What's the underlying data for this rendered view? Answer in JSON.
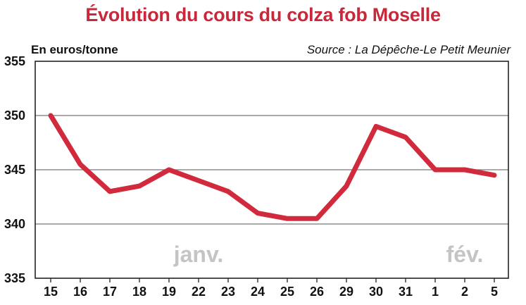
{
  "chart_data": {
    "type": "line",
    "title": "Évolution du cours du colza fob Moselle",
    "ylabel": "En euros/tonne",
    "source": "Source : La Dépêche-Le Petit Meunier",
    "categories": [
      "15",
      "16",
      "17",
      "18",
      "19",
      "22",
      "23",
      "24",
      "25",
      "26",
      "29",
      "30",
      "31",
      "1",
      "2",
      "5"
    ],
    "series": [
      {
        "values": [
          350,
          345.5,
          343,
          343.5,
          345,
          344,
          343,
          341,
          340.5,
          340.5,
          343.5,
          349,
          348,
          345,
          345,
          344.5
        ]
      }
    ],
    "ylim": [
      335,
      355
    ],
    "yticks": [
      335,
      340,
      345,
      350,
      355
    ],
    "month_labels": [
      {
        "text": "janv.",
        "category": "19"
      },
      {
        "text": "fév.",
        "category": "1"
      }
    ],
    "grid": true,
    "line_color": "#d12a3c"
  }
}
